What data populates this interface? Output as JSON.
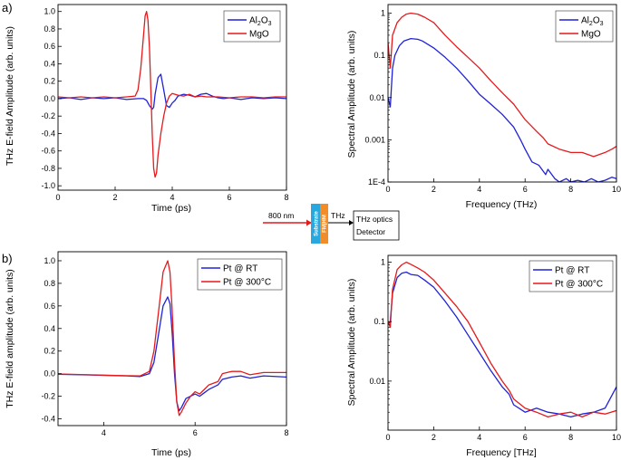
{
  "panel_labels": {
    "a": "a)",
    "b": "b)"
  },
  "diagram": {
    "laser_label": "800 nm",
    "substrate_label": "Substrate",
    "film_label": "FM|HM",
    "thz_label": "THz",
    "box_line1": "THz optics",
    "box_line2": "Detector",
    "colors": {
      "substrate": "#29a8e0",
      "film": "#f28c28",
      "laser": "#e31a1c"
    }
  },
  "legend_subscripts": {
    "al2o3_sub2": "2",
    "al2o3_sub3": "3"
  },
  "chart_data": [
    {
      "id": "a_time",
      "type": "line",
      "xlabel": "Time (ps)",
      "ylabel": "THz E-field Amplitude (arb. units)",
      "xlim": [
        0,
        8
      ],
      "ylim": [
        -1.05,
        1.08
      ],
      "xticks": [
        0,
        2,
        4,
        6,
        8
      ],
      "yticks": [
        -1.0,
        -0.8,
        -0.6,
        -0.4,
        -0.2,
        0.0,
        0.2,
        0.4,
        0.6,
        0.8,
        1.0
      ],
      "ytick_labels": [
        "-1.0",
        "-0.8",
        "-0.6",
        "-0.4",
        "-0.2",
        "0.0",
        "0.2",
        "0.4",
        "0.6",
        "0.8",
        "1.0"
      ],
      "legend_position": "top-right",
      "series": [
        {
          "name": "Al2O3",
          "legend_text": "Al",
          "legend_text_mid": "O",
          "color": "#1f22d6",
          "x": [
            0,
            0.4,
            0.8,
            1.2,
            1.6,
            2.0,
            2.4,
            2.8,
            3.0,
            3.1,
            3.2,
            3.3,
            3.35,
            3.4,
            3.5,
            3.6,
            3.7,
            3.8,
            3.9,
            4.0,
            4.1,
            4.2,
            4.4,
            4.6,
            4.8,
            5.0,
            5.2,
            5.4,
            5.6,
            5.8,
            6.0,
            6.4,
            6.8,
            7.2,
            7.6,
            8.0
          ],
          "y": [
            0.0,
            0.01,
            -0.01,
            0.01,
            0.0,
            0.01,
            -0.01,
            0.0,
            0.0,
            -0.02,
            -0.08,
            -0.12,
            -0.1,
            0.05,
            0.24,
            0.28,
            0.1,
            -0.08,
            -0.1,
            -0.05,
            -0.02,
            0.03,
            0.05,
            0.04,
            0.02,
            0.05,
            0.06,
            0.03,
            0.01,
            0.0,
            0.01,
            -0.01,
            0.01,
            0.0,
            0.01,
            0.0
          ]
        },
        {
          "name": "MgO",
          "legend_text": "MgO",
          "color": "#e41a1c",
          "x": [
            0,
            0.4,
            0.8,
            1.2,
            1.6,
            2.0,
            2.4,
            2.7,
            2.8,
            2.9,
            3.0,
            3.05,
            3.1,
            3.15,
            3.2,
            3.25,
            3.3,
            3.35,
            3.4,
            3.45,
            3.5,
            3.6,
            3.7,
            3.8,
            3.9,
            4.0,
            4.2,
            4.4,
            4.6,
            4.8,
            5.0,
            5.2,
            5.6,
            6.0,
            6.4,
            6.8,
            7.2,
            7.6,
            8.0
          ],
          "y": [
            0.02,
            0.01,
            0.02,
            0.01,
            0.02,
            0.01,
            0.02,
            0.03,
            0.1,
            0.35,
            0.75,
            0.95,
            1.0,
            0.9,
            0.6,
            0.1,
            -0.4,
            -0.8,
            -0.9,
            -0.85,
            -0.65,
            -0.4,
            -0.2,
            -0.05,
            0.03,
            0.06,
            0.04,
            0.03,
            0.05,
            0.02,
            0.03,
            0.02,
            0.02,
            0.01,
            0.02,
            0.02,
            0.01,
            0.02,
            0.02
          ]
        }
      ]
    },
    {
      "id": "a_freq",
      "type": "line",
      "yscale": "log",
      "xlabel": "Frequency (THz)",
      "ylabel": "Spectral Amplitude (arb. units)",
      "xlim": [
        0,
        10
      ],
      "ylim": [
        0.0001,
        1.6
      ],
      "xticks": [
        0,
        2,
        4,
        6,
        8,
        10
      ],
      "yticks": [
        0.0001,
        0.001,
        0.01,
        0.1,
        1
      ],
      "ytick_labels": [
        "1E-4",
        "0.001",
        "0.01",
        "0.1",
        "1"
      ],
      "legend_position": "top-right",
      "series": [
        {
          "name": "Al2O3",
          "legend_text": "Al",
          "legend_text_mid": "O",
          "color": "#1f22d6",
          "x": [
            0,
            0.1,
            0.2,
            0.3,
            0.5,
            0.7,
            1.0,
            1.3,
            1.5,
            2.0,
            2.5,
            3.0,
            3.5,
            4.0,
            4.5,
            5.0,
            5.5,
            5.8,
            6.0,
            6.3,
            6.6,
            6.9,
            7.0,
            7.3,
            7.5,
            7.8,
            8.0,
            8.3,
            8.6,
            8.9,
            9.2,
            9.5,
            9.8,
            10.0
          ],
          "y": [
            0.01,
            0.006,
            0.05,
            0.1,
            0.17,
            0.22,
            0.25,
            0.24,
            0.22,
            0.15,
            0.09,
            0.05,
            0.025,
            0.012,
            0.007,
            0.004,
            0.002,
            0.001,
            0.0006,
            0.0003,
            0.00025,
            0.00015,
            0.0002,
            0.00012,
            0.0001,
            0.00012,
            0.0001,
            0.00011,
            0.0001,
            0.00012,
            0.0001,
            0.00011,
            0.00013,
            0.00012
          ]
        },
        {
          "name": "MgO",
          "legend_text": "MgO",
          "color": "#e41a1c",
          "x": [
            0,
            0.1,
            0.2,
            0.4,
            0.6,
            0.8,
            1.0,
            1.3,
            1.6,
            2.0,
            2.5,
            3.0,
            3.5,
            4.0,
            4.5,
            5.0,
            5.5,
            6.0,
            6.5,
            6.8,
            7.0,
            7.5,
            8.0,
            8.5,
            9.0,
            9.5,
            9.8,
            10.0
          ],
          "y": [
            0.2,
            0.05,
            0.3,
            0.6,
            0.8,
            0.95,
            1.0,
            0.95,
            0.8,
            0.6,
            0.3,
            0.16,
            0.09,
            0.05,
            0.025,
            0.013,
            0.007,
            0.003,
            0.0016,
            0.0011,
            0.0008,
            0.0006,
            0.0005,
            0.0005,
            0.0004,
            0.0005,
            0.0006,
            0.0007
          ]
        }
      ]
    },
    {
      "id": "b_time",
      "type": "line",
      "xlabel": "Time (ps)",
      "ylabel": "THz E-field amplitude (arb. units)",
      "xlim": [
        3,
        8
      ],
      "ylim": [
        -0.46,
        1.08
      ],
      "xticks": [
        4,
        6,
        8
      ],
      "yticks": [
        -0.4,
        -0.2,
        0.0,
        0.2,
        0.4,
        0.6,
        0.8,
        1.0
      ],
      "ytick_labels": [
        "-0.4",
        "-0.2",
        "0.0",
        "0.2",
        "0.4",
        "0.6",
        "0.8",
        "1.0"
      ],
      "legend_position": "top-right",
      "series": [
        {
          "name": "Pt @ RT",
          "legend_text": "Pt @ RT",
          "color": "#1f22d6",
          "x": [
            3.0,
            3.5,
            4.0,
            4.5,
            4.8,
            5.0,
            5.1,
            5.2,
            5.3,
            5.4,
            5.45,
            5.5,
            5.55,
            5.6,
            5.65,
            5.7,
            5.8,
            5.9,
            6.0,
            6.1,
            6.2,
            6.3,
            6.5,
            6.6,
            6.8,
            7.0,
            7.2,
            7.5,
            8.0
          ],
          "y": [
            -0.005,
            -0.01,
            -0.015,
            -0.02,
            -0.025,
            0.0,
            0.1,
            0.35,
            0.6,
            0.68,
            0.62,
            0.35,
            0.0,
            -0.25,
            -0.33,
            -0.3,
            -0.22,
            -0.2,
            -0.18,
            -0.2,
            -0.17,
            -0.14,
            -0.1,
            -0.05,
            -0.03,
            -0.02,
            -0.04,
            -0.02,
            -0.03
          ]
        },
        {
          "name": "Pt @ 300°C",
          "legend_text": "Pt @ 300°C",
          "color": "#e41a1c",
          "x": [
            3.0,
            3.5,
            4.0,
            4.5,
            4.8,
            5.0,
            5.1,
            5.2,
            5.3,
            5.4,
            5.45,
            5.5,
            5.55,
            5.6,
            5.65,
            5.7,
            5.8,
            5.9,
            6.0,
            6.1,
            6.2,
            6.3,
            6.5,
            6.6,
            6.8,
            7.0,
            7.2,
            7.5,
            8.0
          ],
          "y": [
            -0.003,
            -0.008,
            -0.013,
            -0.018,
            -0.02,
            0.02,
            0.2,
            0.55,
            0.9,
            1.0,
            0.9,
            0.55,
            0.1,
            -0.25,
            -0.37,
            -0.34,
            -0.26,
            -0.2,
            -0.16,
            -0.18,
            -0.14,
            -0.1,
            -0.07,
            0.0,
            0.02,
            0.02,
            -0.01,
            0.01,
            0.01
          ]
        }
      ]
    },
    {
      "id": "b_freq",
      "type": "line",
      "yscale": "log",
      "xlabel": "Frequency [THz]",
      "ylabel": "Spectral Amplitude (arb. units)",
      "xlim": [
        0,
        10
      ],
      "ylim": [
        0.0015,
        1.3
      ],
      "xticks": [
        0,
        2,
        4,
        6,
        8,
        10
      ],
      "yticks": [
        0.01,
        0.1,
        1
      ],
      "ytick_labels": [
        "0.01",
        "0.1",
        "1"
      ],
      "legend_position": "top-right",
      "series": [
        {
          "name": "Pt @ RT",
          "legend_text": "Pt @ RT",
          "color": "#1f22d6",
          "x": [
            0,
            0.1,
            0.2,
            0.4,
            0.6,
            0.8,
            1.0,
            1.3,
            1.6,
            2.0,
            2.5,
            3.0,
            3.5,
            4.0,
            4.5,
            5.0,
            5.3,
            5.5,
            6.0,
            6.5,
            7.0,
            7.5,
            8.0,
            8.5,
            9.0,
            9.5,
            10.0
          ],
          "y": [
            0.09,
            0.1,
            0.3,
            0.55,
            0.65,
            0.68,
            0.62,
            0.6,
            0.5,
            0.38,
            0.22,
            0.12,
            0.06,
            0.03,
            0.015,
            0.008,
            0.006,
            0.004,
            0.003,
            0.0035,
            0.003,
            0.0028,
            0.0025,
            0.0028,
            0.003,
            0.0035,
            0.008
          ]
        },
        {
          "name": "Pt @ 300°C",
          "legend_text": "Pt @ 300°C",
          "color": "#e41a1c",
          "x": [
            0,
            0.1,
            0.2,
            0.4,
            0.6,
            0.8,
            1.0,
            1.3,
            1.6,
            2.0,
            2.5,
            3.0,
            3.5,
            4.0,
            4.5,
            5.0,
            5.3,
            5.5,
            6.0,
            6.5,
            7.0,
            7.5,
            8.0,
            8.5,
            9.0,
            9.5,
            10.0
          ],
          "y": [
            0.1,
            0.08,
            0.35,
            0.75,
            0.9,
            1.0,
            0.92,
            0.8,
            0.68,
            0.5,
            0.3,
            0.18,
            0.1,
            0.045,
            0.02,
            0.01,
            0.007,
            0.005,
            0.0035,
            0.003,
            0.0025,
            0.0028,
            0.003,
            0.0025,
            0.003,
            0.0028,
            0.0032
          ]
        }
      ]
    }
  ]
}
